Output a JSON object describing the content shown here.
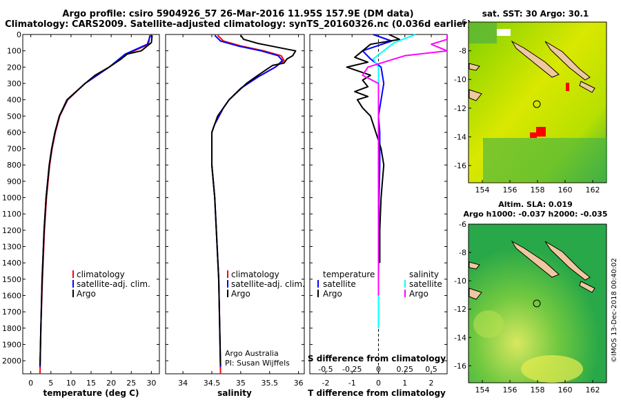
{
  "header": {
    "line1": "Argo profile: csiro 5904926_57 26-Mar-2016 11.95S 157.9E (DM data)",
    "line2": "Climatology: CARS2009. Satellite-adjusted climatology: synTS_20160326.nc (0.036d earlier)"
  },
  "colors": {
    "climatology": "#ff0000",
    "satellite": "#0000ff",
    "argo": "#000000",
    "sat_t": "#00ffff",
    "sat_s_argo": "#ff00ff"
  },
  "depth_ticks": [
    "0",
    "100",
    "200",
    "300",
    "400",
    "500",
    "600",
    "700",
    "800",
    "900",
    "1000",
    "1100",
    "1200",
    "1300",
    "1400",
    "1500",
    "1600",
    "1700",
    "1800",
    "1900",
    "2000"
  ],
  "chart_data": [
    {
      "type": "line",
      "xlabel": "temperature (deg C)",
      "ylabel": "pressure (dbar)",
      "xlim": [
        -2,
        32
      ],
      "ylim": [
        2080,
        0
      ],
      "xticks": [
        "0",
        "5",
        "10",
        "15",
        "20",
        "25",
        "30"
      ],
      "legend": [
        "climatology",
        "satellite-adj. clim.",
        "Argo"
      ],
      "series": [
        {
          "name": "climatology",
          "depth": [
            5,
            60,
            120,
            200,
            300,
            400,
            500,
            600,
            700,
            800,
            1000,
            1200,
            1500,
            1800,
            2080
          ],
          "values": [
            29.6,
            29.3,
            24.0,
            19.5,
            13.5,
            9.2,
            7.2,
            6.1,
            5.3,
            4.7,
            3.9,
            3.4,
            2.9,
            2.5,
            2.3
          ]
        },
        {
          "name": "satellite-adj. clim.",
          "depth": [
            5,
            60,
            120,
            200,
            300,
            400,
            500,
            600,
            700,
            800,
            1000,
            1200,
            1500,
            1800,
            2040
          ],
          "values": [
            29.8,
            29.0,
            23.5,
            19.5,
            13.5,
            9.1,
            7.1,
            6.0,
            5.2,
            4.6,
            3.8,
            3.3,
            2.8,
            2.5,
            2.3
          ]
        },
        {
          "name": "Argo",
          "depth": [
            5,
            50,
            100,
            120,
            150,
            200,
            250,
            300,
            400,
            500,
            600,
            700,
            800,
            1000,
            1200,
            1500,
            1800,
            2030
          ],
          "values": [
            30.2,
            30.0,
            27.5,
            24.0,
            22.5,
            19.5,
            16.0,
            13.5,
            9.0,
            7.1,
            6.0,
            5.2,
            4.6,
            3.8,
            3.3,
            2.8,
            2.5,
            2.3
          ]
        }
      ]
    },
    {
      "type": "line",
      "xlabel": "salinity",
      "ylabel": "pressure (dbar)",
      "xlim": [
        33.7,
        36.1
      ],
      "ylim": [
        2080,
        0
      ],
      "xticks": [
        "34",
        "34.5",
        "35",
        "35.5",
        "36"
      ],
      "legend": [
        "climatology",
        "satellite-adj. clim.",
        "Argo"
      ],
      "series": [
        {
          "name": "climatology",
          "depth": [
            5,
            40,
            70,
            100,
            130,
            160,
            200,
            260,
            330,
            400,
            450,
            550,
            600,
            700,
            800,
            1000,
            1500,
            2080
          ],
          "values": [
            34.6,
            34.7,
            35.0,
            35.4,
            35.7,
            35.75,
            35.6,
            35.3,
            35.0,
            34.8,
            34.7,
            34.55,
            34.5,
            34.5,
            34.5,
            34.55,
            34.62,
            34.65
          ]
        },
        {
          "name": "satellite-adj. clim.",
          "depth": [
            5,
            40,
            70,
            100,
            130,
            160,
            200,
            260,
            330,
            400,
            450,
            550,
            600,
            700,
            800,
            1000,
            1500,
            2040
          ],
          "values": [
            34.55,
            34.65,
            34.95,
            35.35,
            35.65,
            35.72,
            35.6,
            35.3,
            35.0,
            34.8,
            34.7,
            34.55,
            34.5,
            34.5,
            34.5,
            34.55,
            34.62,
            34.65
          ]
        },
        {
          "name": "Argo",
          "depth": [
            5,
            30,
            55,
            90,
            100,
            130,
            150,
            175,
            190,
            250,
            300,
            400,
            500,
            600,
            700,
            800,
            1000,
            1500,
            2030
          ],
          "values": [
            35.0,
            35.05,
            35.3,
            35.8,
            35.95,
            35.9,
            35.8,
            35.75,
            35.55,
            35.3,
            35.1,
            34.8,
            34.6,
            34.5,
            34.5,
            34.5,
            34.55,
            34.62,
            34.65
          ]
        }
      ]
    },
    {
      "type": "line",
      "xlabel": "T difference from climatology",
      "xlabel_top": "S difference from climatology",
      "ylabel": "pressure (dbar)",
      "xlim": [
        -2.6,
        2.6
      ],
      "ylim": [
        2080,
        0
      ],
      "xticks": [
        "-2",
        "-1",
        "0",
        "1",
        "2"
      ],
      "xticks_top": [
        "-0.5",
        "-0.25",
        "0",
        "0.25",
        "0.5"
      ],
      "legend_left_title": "temperature",
      "legend_right_title": "salinity",
      "legend": [
        "satellite",
        "Argo",
        "satellite",
        "Argo"
      ],
      "series": [
        {
          "name": "T satellite",
          "depth": [
            0,
            40,
            100,
            150,
            200,
            300,
            400,
            500,
            600,
            800,
            1000,
            1500,
            1800
          ],
          "values": [
            -0.2,
            0.5,
            -0.6,
            -0.3,
            0.1,
            0.2,
            0.1,
            0.0,
            0.05,
            0.05,
            0.02,
            0.0,
            0.0
          ]
        },
        {
          "name": "T Argo",
          "depth": [
            0,
            30,
            60,
            100,
            140,
            170,
            200,
            250,
            280,
            320,
            350,
            380,
            400,
            450,
            500,
            600,
            700,
            800,
            900,
            1000,
            1200,
            1400
          ],
          "values": [
            0.4,
            0.8,
            -0.3,
            -0.6,
            -0.9,
            -0.4,
            -1.2,
            -0.3,
            -0.6,
            -0.4,
            -0.9,
            -0.4,
            -0.8,
            -0.6,
            -0.3,
            -0.1,
            0.1,
            0.2,
            0.15,
            0.1,
            0.05,
            0.05
          ]
        },
        {
          "name": "S satellite",
          "depth": [
            0,
            50,
            100,
            150,
            200,
            300,
            500,
            800,
            1200,
            1500,
            1800
          ],
          "values": [
            0.35,
            0.15,
            0.05,
            -0.05,
            0.0,
            0.0,
            0.0,
            0.0,
            0.0,
            0.0,
            0.0
          ]
        },
        {
          "name": "S Argo",
          "depth": [
            0,
            30,
            60,
            100,
            130,
            160,
            200,
            250,
            300,
            350,
            400,
            500,
            800,
            1200,
            1600
          ],
          "values": [
            1.2,
            0.9,
            0.5,
            0.7,
            0.25,
            0.1,
            -0.1,
            -0.15,
            0.0,
            0.0,
            0.0,
            0.0,
            0.0,
            0.0,
            0.0
          ]
        }
      ]
    },
    {
      "type": "heatmap",
      "title": "sat. SST: 30 Argo: 30.1",
      "xticks": [
        "154",
        "156",
        "158",
        "160",
        "162"
      ],
      "yticks": [
        "-6",
        "-8",
        "-10",
        "-12",
        "-14",
        "-16"
      ]
    },
    {
      "type": "heatmap",
      "title": "Altim. SLA: 0.019",
      "subtitle": "Argo h1000: -0.037 h2000: -0.035",
      "xticks": [
        "154",
        "156",
        "158",
        "160",
        "162"
      ],
      "yticks": [
        "-6",
        "-8",
        "-10",
        "-12",
        "-14",
        "-16"
      ]
    }
  ],
  "credits": {
    "line1": "Argo Australia",
    "line2": "PI: Susan Wijffels"
  },
  "watermark": "©IMOS 13-Dec-2018 00:40:02"
}
